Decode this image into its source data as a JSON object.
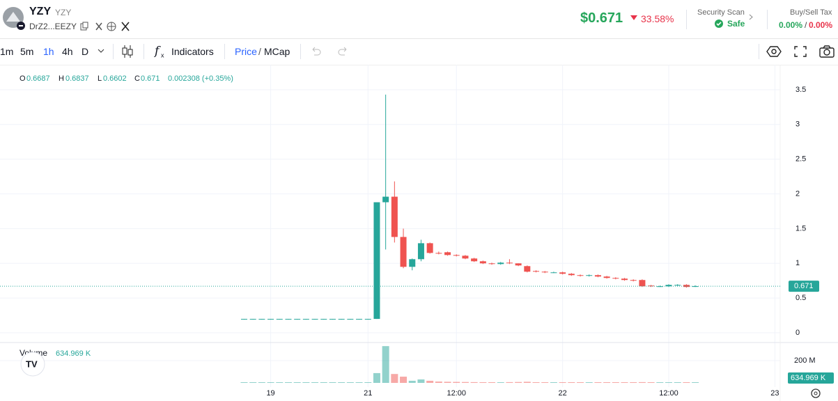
{
  "header": {
    "title": "YZY",
    "ticker": "YZY",
    "address": "DrZ2...EEZY",
    "price": "$0.671",
    "change": "33.58%",
    "security_label": "Security Scan",
    "security_status": "Safe",
    "tax_label": "Buy/Sell Tax",
    "buy_tax": "0.00%",
    "tax_separator": "/",
    "sell_tax": "0.00%"
  },
  "toolbar": {
    "intervals": [
      "1m",
      "5m",
      "1h",
      "4h",
      "D"
    ],
    "active_interval": 2,
    "indicators": "Indicators",
    "price": "Price",
    "separator": "/",
    "mcap": "MCap"
  },
  "chart_data": {
    "type": "candlestick",
    "legend": {
      "open": "O",
      "high": "H",
      "low": "L",
      "close": "C",
      "change": "0.002308 (+0.35%)",
      "volume": "Volume"
    },
    "up_color": "#26a69a",
    "down_color": "#ef5350",
    "x": [
      -15,
      -14,
      -13,
      -12,
      -11,
      -10,
      -9,
      -8,
      -7,
      -6,
      -5,
      -4,
      -3,
      -2,
      -1,
      0,
      1,
      2,
      3,
      4,
      5,
      6,
      7,
      8,
      9,
      10,
      11,
      12,
      13,
      14,
      15,
      16,
      17,
      18,
      19,
      20,
      21,
      22,
      23,
      24,
      25,
      26,
      27,
      28,
      29,
      30,
      31,
      32,
      33,
      34,
      35,
      36
    ],
    "open": [
      0.2,
      0.2,
      0.2,
      0.2,
      0.2,
      0.2,
      0.2,
      0.2,
      0.2,
      0.2,
      0.2,
      0.2,
      0.2,
      0.2,
      0.2,
      0.2,
      1.88,
      1.96,
      1.38,
      0.95,
      1.06,
      1.29,
      1.15,
      1.16,
      1.12,
      1.11,
      1.07,
      1.03,
      1.0,
      0.99,
      1.01,
      1.0,
      0.96,
      0.89,
      0.88,
      0.87,
      0.87,
      0.85,
      0.83,
      0.82,
      0.83,
      0.81,
      0.79,
      0.78,
      0.76,
      0.76,
      0.68,
      0.67,
      0.67,
      0.68,
      0.69,
      0.6687
    ],
    "high": [
      0.2,
      0.2,
      0.2,
      0.2,
      0.2,
      0.2,
      0.2,
      0.2,
      0.2,
      0.2,
      0.2,
      0.2,
      0.2,
      0.2,
      0.2,
      1.88,
      3.43,
      2.18,
      1.5,
      1.07,
      1.34,
      1.3,
      1.17,
      1.17,
      1.13,
      1.12,
      1.08,
      1.04,
      1.01,
      1.02,
      1.06,
      1.0,
      0.97,
      0.9,
      0.89,
      0.88,
      0.88,
      0.86,
      0.84,
      0.84,
      0.84,
      0.82,
      0.8,
      0.79,
      0.77,
      0.77,
      0.69,
      0.68,
      0.7,
      0.7,
      0.7,
      0.6837
    ],
    "low": [
      0.2,
      0.2,
      0.2,
      0.2,
      0.2,
      0.2,
      0.2,
      0.2,
      0.2,
      0.2,
      0.2,
      0.2,
      0.2,
      0.2,
      0.2,
      0.2,
      1.2,
      1.3,
      0.93,
      0.9,
      1.03,
      1.14,
      1.13,
      1.11,
      1.1,
      1.06,
      1.02,
      0.99,
      0.98,
      0.98,
      0.99,
      0.96,
      0.87,
      0.87,
      0.86,
      0.86,
      0.84,
      0.82,
      0.81,
      0.81,
      0.8,
      0.78,
      0.77,
      0.75,
      0.74,
      0.66,
      0.66,
      0.66,
      0.66,
      0.67,
      0.65,
      0.6602
    ],
    "close": [
      0.2,
      0.2,
      0.2,
      0.2,
      0.2,
      0.2,
      0.2,
      0.2,
      0.2,
      0.2,
      0.2,
      0.2,
      0.2,
      0.2,
      0.2,
      1.88,
      1.96,
      1.38,
      0.95,
      1.06,
      1.29,
      1.15,
      1.14,
      1.12,
      1.11,
      1.07,
      1.03,
      1.0,
      0.99,
      1.01,
      1.0,
      0.97,
      0.88,
      0.88,
      0.87,
      0.87,
      0.85,
      0.83,
      0.82,
      0.83,
      0.81,
      0.79,
      0.78,
      0.76,
      0.75,
      0.67,
      0.67,
      0.67,
      0.69,
      0.69,
      0.66,
      0.671
    ],
    "volume": [
      1500000,
      1500000,
      1500000,
      1500000,
      1500000,
      1500000,
      1500000,
      1500000,
      1500000,
      1500000,
      1500000,
      1500000,
      1500000,
      1500000,
      1500000,
      88000000,
      330000000,
      80000000,
      56000000,
      19000000,
      31000000,
      19000000,
      12000000,
      10000000,
      9000000,
      8000000,
      7000000,
      6000000,
      6000000,
      5000000,
      7000000,
      8000000,
      10000000,
      6000000,
      5000000,
      5000000,
      4000000,
      5000000,
      4000000,
      4000000,
      4000000,
      4000000,
      4000000,
      4000000,
      4000000,
      7000000,
      4000000,
      3000000,
      3000000,
      3000000,
      3000000,
      634969
    ],
    "last_volume_label": "634.969 K",
    "xlim": [
      -42.6,
      45.6
    ],
    "xticks": [
      {
        "value": -12,
        "label": "19"
      },
      {
        "value": -1,
        "label": "21"
      },
      {
        "value": 9,
        "label": "12:00"
      },
      {
        "value": 21,
        "label": "22"
      },
      {
        "value": 33,
        "label": "12:00"
      },
      {
        "value": 45,
        "label": "23"
      }
    ],
    "ylim": [
      -0.12,
      3.82
    ],
    "yticks": [
      0,
      0.5,
      1,
      1.5,
      2,
      2.5,
      3,
      3.5
    ],
    "volume_ylim": [
      0,
      356000000
    ],
    "volume_yticks": [
      {
        "value": 200000000,
        "label": "200 M"
      }
    ],
    "grid": true
  }
}
